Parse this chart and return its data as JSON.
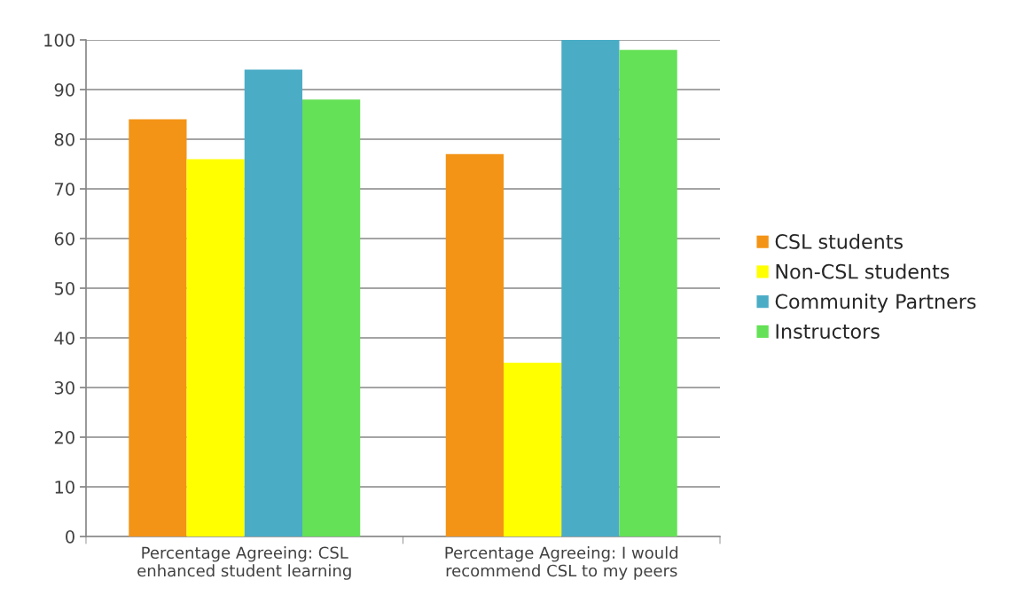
{
  "chart_data": {
    "type": "bar",
    "categories": [
      "Percentage Agreeing: CSL\nenhanced student learning",
      "Percentage Agreeing: I would\nrecommend CSL to my peers"
    ],
    "series": [
      {
        "name": "CSL students",
        "color": "#f39416",
        "values": [
          84,
          77
        ]
      },
      {
        "name": "Non-CSL students",
        "color": "#ffff00",
        "values": [
          76,
          35
        ]
      },
      {
        "name": "Community Partners",
        "color": "#4bacc6",
        "values": [
          94,
          100
        ]
      },
      {
        "name": "Instructors",
        "color": "#64e156",
        "values": [
          88,
          98
        ]
      }
    ],
    "ylim": [
      0,
      100
    ],
    "yticks": [
      0,
      10,
      20,
      30,
      40,
      50,
      60,
      70,
      80,
      90,
      100
    ],
    "grid": "y",
    "legend": "right"
  }
}
